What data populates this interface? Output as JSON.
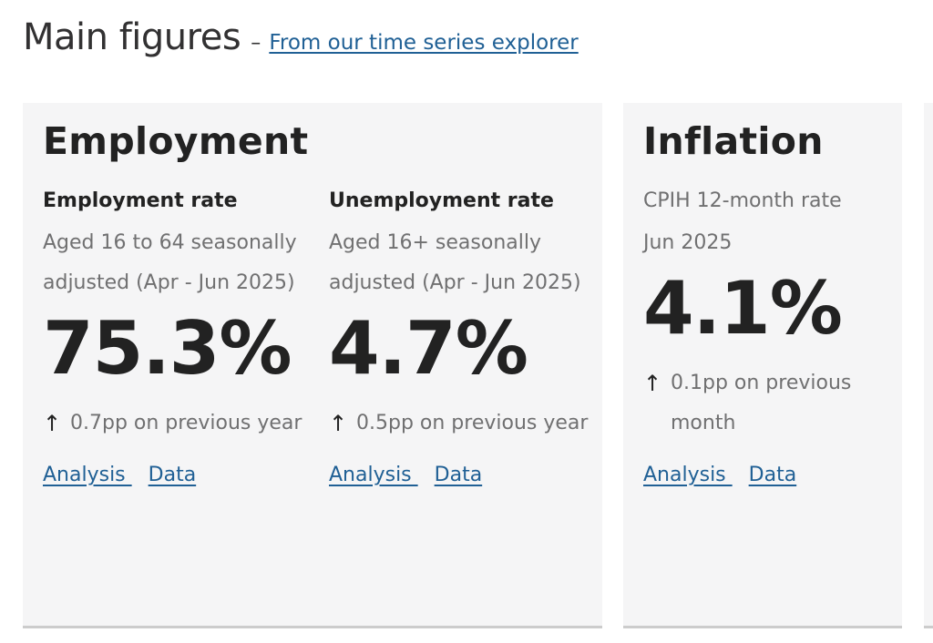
{
  "heading": {
    "title": "Main figures",
    "separator": "–",
    "link_text": "From our time series explorer"
  },
  "employment": {
    "title": "Employment",
    "rate": {
      "label": "Employment rate",
      "description": "Aged 16 to 64 seasonally adjusted (Apr - Jun 2025)",
      "value": "75.3%",
      "change": "0.7pp on previous year",
      "analysis_link": "Analysis ",
      "data_link": "Data"
    },
    "unemployment": {
      "label": "Unemployment rate",
      "description": "Aged 16+ seasonally adjusted (Apr - Jun 2025)",
      "value": "4.7%",
      "change": "0.5pp on previous year",
      "analysis_link": "Analysis ",
      "data_link": "Data"
    }
  },
  "inflation": {
    "title": "Inflation",
    "label": "CPIH 12-month rate",
    "description": "Jun 2025",
    "value": "4.1%",
    "change": "0.1pp on previous month",
    "analysis_link": "Analysis ",
    "data_link": "Data"
  },
  "icons": {
    "arrow": "↑"
  },
  "colors": {
    "link": "#206095",
    "card_bg": "#f5f5f6",
    "muted_text": "#707071"
  }
}
